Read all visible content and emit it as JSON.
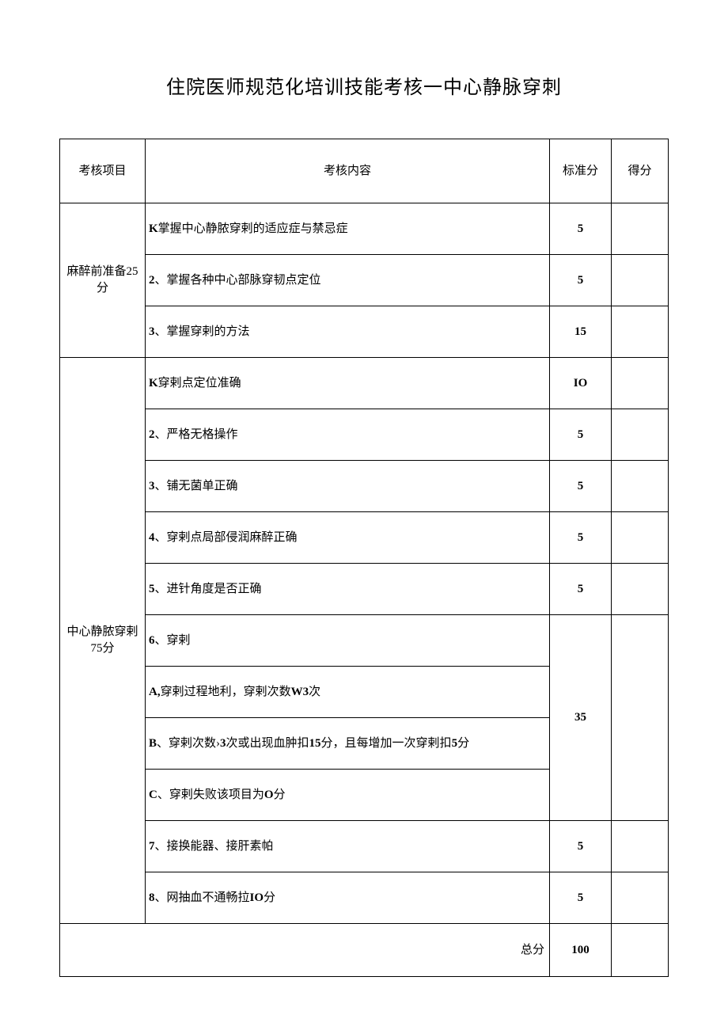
{
  "title": "住院医师规范化培训技能考核一中心静脉穿刺",
  "headers": {
    "item": "考核项目",
    "content": "考核内容",
    "score": "标准分",
    "got": "得分"
  },
  "sections": [
    {
      "name": "麻醉前准备25分",
      "rows": [
        {
          "prefix": "K",
          "text": "掌握中心静脓穿剌的适应症与禁忌症",
          "score": "5"
        },
        {
          "prefix": "2",
          "sep": "、",
          "text": "掌握各种中心部脉穿韧点定位",
          "score": "5"
        },
        {
          "prefix": "3",
          "sep": "、",
          "text": "掌握穿剌的方法",
          "score": "15"
        }
      ]
    },
    {
      "name": "中心静脓穿剌75分",
      "rows": [
        {
          "prefix": "K",
          "text": "穿剌点定位准确",
          "score": "IO"
        },
        {
          "prefix": "2",
          "sep": "、",
          "text": "严格无格操作",
          "score": "5"
        },
        {
          "prefix": "3",
          "sep": "、",
          "text": "铺无菌单正确",
          "score": "5"
        },
        {
          "prefix": "4",
          "sep": "、",
          "text": "穿剌点局部侵润麻醉正确",
          "score": "5"
        },
        {
          "prefix": "5",
          "sep": "、",
          "text": "进针角度是否正确",
          "score": "5"
        }
      ],
      "merged": {
        "rows": [
          {
            "prefix": "6",
            "sep": "、",
            "text": "穿剌"
          },
          {
            "prefix": "A,",
            "text_parts": [
              "穿剌过程地利，穿剌次数",
              "W3",
              "次"
            ]
          },
          {
            "prefix": "B",
            "sep": "、",
            "text_parts": [
              "穿剌次数›",
              "3",
              "次或出现血肿扣",
              "15",
              "分，且每增加一次穿剌扣",
              "5",
              "分"
            ]
          },
          {
            "prefix": "C",
            "sep": "、",
            "text_parts": [
              "穿剌失败该项目为",
              "O",
              "分"
            ]
          }
        ],
        "score": "35"
      },
      "tail": [
        {
          "prefix": "7",
          "sep": "、",
          "text": "接换能器、接肝素帕",
          "score": "5"
        },
        {
          "prefix": "8",
          "sep": "、",
          "text_parts": [
            "网抽血不通畅拉",
            "IO",
            "分"
          ],
          "score": "5"
        }
      ]
    }
  ],
  "total": {
    "label": "总分",
    "score": "100"
  }
}
